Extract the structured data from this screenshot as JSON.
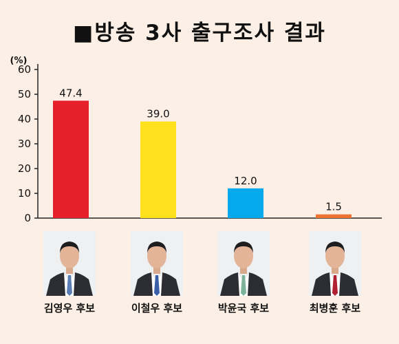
{
  "title": "■방송 3사 출구조사 결과",
  "chart_data": {
    "type": "bar",
    "categories": [
      "김영우 후보",
      "이철우 후보",
      "박윤국 후보",
      "최병훈 후보"
    ],
    "values": [
      47.4,
      39.0,
      12.0,
      1.5
    ],
    "value_labels": [
      "47.4",
      "39.0",
      "12.0",
      "1.5"
    ],
    "colors": [
      "#e5202a",
      "#ffe11d",
      "#06aaec",
      "#ee7230"
    ],
    "unit_label": "(%)",
    "ylim": [
      0,
      60
    ],
    "yticks": [
      0,
      10,
      20,
      30,
      40,
      50,
      60
    ],
    "grid": false
  },
  "candidates": [
    {
      "name": "김영우 후보",
      "tie_color": "#5b7fb5"
    },
    {
      "name": "이철우 후보",
      "tie_color": "#3a5fa8"
    },
    {
      "name": "박윤국 후보",
      "tie_color": "#7db39a"
    },
    {
      "name": "최병훈 후보",
      "tie_color": "#b02030"
    }
  ]
}
